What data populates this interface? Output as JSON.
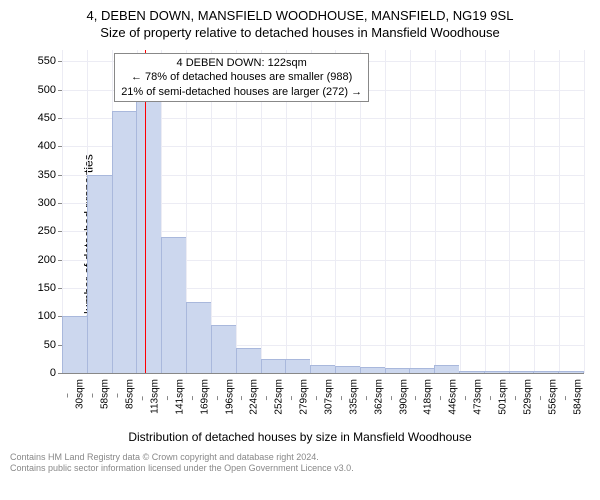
{
  "title_line1": "4, DEBEN DOWN, MANSFIELD WOODHOUSE, MANSFIELD, NG19 9SL",
  "title_line2": "Size of property relative to detached houses in Mansfield Woodhouse",
  "chart": {
    "type": "histogram",
    "ylabel": "Number of detached properties",
    "xlabel": "Distribution of detached houses by size in Mansfield Woodhouse",
    "ylim": [
      0,
      570
    ],
    "ytick_start": 0,
    "ytick_step": 50,
    "ytick_max": 550,
    "xticks": [
      "30sqm",
      "58sqm",
      "85sqm",
      "113sqm",
      "141sqm",
      "169sqm",
      "196sqm",
      "224sqm",
      "252sqm",
      "279sqm",
      "307sqm",
      "335sqm",
      "362sqm",
      "390sqm",
      "418sqm",
      "446sqm",
      "473sqm",
      "501sqm",
      "529sqm",
      "556sqm",
      "584sqm"
    ],
    "bar_values": [
      100,
      350,
      462,
      505,
      240,
      125,
      85,
      45,
      25,
      24,
      15,
      13,
      10,
      8,
      8,
      15,
      4,
      3,
      3,
      3,
      3
    ],
    "bar_color": "#ccd7ee",
    "bar_border": "#a9b8dc",
    "grid_color": "#ececf4",
    "axis_color": "#888888",
    "background_color": "#ffffff",
    "marker_line": {
      "bin_index": 3,
      "position_in_bin": 0.33,
      "color": "#ff0000"
    },
    "annotation": {
      "lines": [
        "4 DEBEN DOWN: 122sqm",
        "← 78% of detached houses are smaller (988)",
        "21% of semi-detached houses are larger (272) →"
      ],
      "border_color": "#888888",
      "bg_color": "#ffffff",
      "fontsize": 11
    }
  },
  "footer_line1": "Contains HM Land Registry data © Crown copyright and database right 2024.",
  "footer_line2": "Contains public sector information licensed under the Open Government Licence v3.0."
}
